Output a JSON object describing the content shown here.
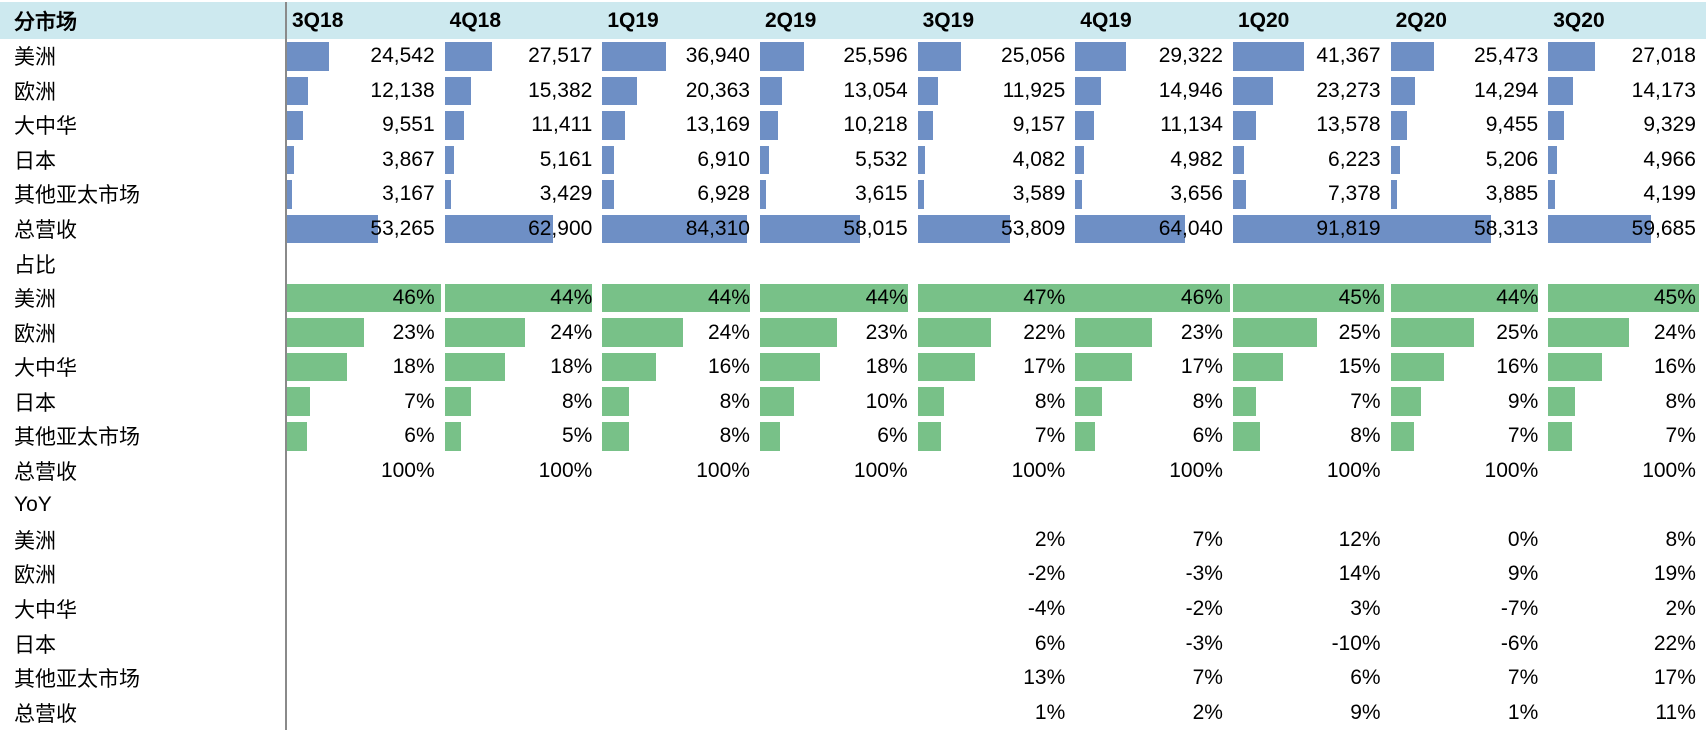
{
  "colors": {
    "header_bg": "#cde9ef",
    "revenue_bar": "#6e8fc5",
    "share_bar": "#78c188",
    "divider": "#8a8a8a",
    "text": "#000000"
  },
  "chart_data": {
    "type": "table",
    "title": "分市场",
    "categories": [
      "3Q18",
      "4Q18",
      "1Q19",
      "2Q19",
      "3Q19",
      "4Q19",
      "1Q20",
      "2Q20",
      "3Q20"
    ],
    "layout": {
      "bar_direction": "left-to-right",
      "value_alignment": "right",
      "notes": "each cell shows a data bar proportional to value/bar_max with the value right-aligned on top"
    },
    "sections": [
      {
        "id": "revenue",
        "heading": null,
        "bar_style": "blue",
        "bar_max": 91819,
        "rows": [
          {
            "label": "美洲",
            "values": [
              24542,
              27517,
              36940,
              25596,
              25056,
              29322,
              41367,
              25473,
              27018
            ],
            "texts": [
              "24,542",
              "27,517",
              "36,940",
              "25,596",
              "25,056",
              "29,322",
              "41,367",
              "25,473",
              "27,018"
            ]
          },
          {
            "label": "欧洲",
            "values": [
              12138,
              15382,
              20363,
              13054,
              11925,
              14946,
              23273,
              14294,
              14173
            ],
            "texts": [
              "12,138",
              "15,382",
              "20,363",
              "13,054",
              "11,925",
              "14,946",
              "23,273",
              "14,294",
              "14,173"
            ]
          },
          {
            "label": "大中华",
            "values": [
              9551,
              11411,
              13169,
              10218,
              9157,
              11134,
              13578,
              9455,
              9329
            ],
            "texts": [
              "9,551",
              "11,411",
              "13,169",
              "10,218",
              "9,157",
              "11,134",
              "13,578",
              "9,455",
              "9,329"
            ]
          },
          {
            "label": "日本",
            "values": [
              3867,
              5161,
              6910,
              5532,
              4082,
              4982,
              6223,
              5206,
              4966
            ],
            "texts": [
              "3,867",
              "5,161",
              "6,910",
              "5,532",
              "4,082",
              "4,982",
              "6,223",
              "5,206",
              "4,966"
            ]
          },
          {
            "label": "其他亚太市场",
            "values": [
              3167,
              3429,
              6928,
              3615,
              3589,
              3656,
              7378,
              3885,
              4199
            ],
            "texts": [
              "3,167",
              "3,429",
              "6,928",
              "3,615",
              "3,589",
              "3,656",
              "7,378",
              "3,885",
              "4,199"
            ]
          },
          {
            "label": "总营收",
            "values": [
              53265,
              62900,
              84310,
              58015,
              53809,
              64040,
              91819,
              58313,
              59685
            ],
            "texts": [
              "53,265",
              "62,900",
              "84,310",
              "58,015",
              "53,809",
              "64,040",
              "91,819",
              "58,313",
              "59,685"
            ]
          }
        ]
      },
      {
        "id": "share",
        "heading": "占比",
        "bar_style": "green",
        "bar_max": 47,
        "rows": [
          {
            "label": "美洲",
            "values": [
              46,
              44,
              44,
              44,
              47,
              46,
              45,
              44,
              45
            ],
            "texts": [
              "46%",
              "44%",
              "44%",
              "44%",
              "47%",
              "46%",
              "45%",
              "44%",
              "45%"
            ]
          },
          {
            "label": "欧洲",
            "values": [
              23,
              24,
              24,
              23,
              22,
              23,
              25,
              25,
              24
            ],
            "texts": [
              "23%",
              "24%",
              "24%",
              "23%",
              "22%",
              "23%",
              "25%",
              "25%",
              "24%"
            ]
          },
          {
            "label": "大中华",
            "values": [
              18,
              18,
              16,
              18,
              17,
              17,
              15,
              16,
              16
            ],
            "texts": [
              "18%",
              "18%",
              "16%",
              "18%",
              "17%",
              "17%",
              "15%",
              "16%",
              "16%"
            ]
          },
          {
            "label": "日本",
            "values": [
              7,
              8,
              8,
              10,
              8,
              8,
              7,
              9,
              8
            ],
            "texts": [
              "7%",
              "8%",
              "8%",
              "10%",
              "8%",
              "8%",
              "7%",
              "9%",
              "8%"
            ]
          },
          {
            "label": "其他亚太市场",
            "values": [
              6,
              5,
              8,
              6,
              7,
              6,
              8,
              7,
              7
            ],
            "texts": [
              "6%",
              "5%",
              "8%",
              "6%",
              "7%",
              "6%",
              "8%",
              "7%",
              "7%"
            ]
          },
          {
            "label": "总营收",
            "values": null,
            "texts": [
              "100%",
              "100%",
              "100%",
              "100%",
              "100%",
              "100%",
              "100%",
              "100%",
              "100%"
            ]
          }
        ]
      },
      {
        "id": "yoy",
        "heading": "YoY",
        "bar_style": null,
        "bar_max": null,
        "rows": [
          {
            "label": "美洲",
            "values": null,
            "texts": [
              "",
              "",
              "",
              "",
              "2%",
              "7%",
              "12%",
              "0%",
              "8%"
            ]
          },
          {
            "label": "欧洲",
            "values": null,
            "texts": [
              "",
              "",
              "",
              "",
              "-2%",
              "-3%",
              "14%",
              "9%",
              "19%"
            ]
          },
          {
            "label": "大中华",
            "values": null,
            "texts": [
              "",
              "",
              "",
              "",
              "-4%",
              "-2%",
              "3%",
              "-7%",
              "2%"
            ]
          },
          {
            "label": "日本",
            "values": null,
            "texts": [
              "",
              "",
              "",
              "",
              "6%",
              "-3%",
              "-10%",
              "-6%",
              "22%"
            ]
          },
          {
            "label": "其他亚太市场",
            "values": null,
            "texts": [
              "",
              "",
              "",
              "",
              "13%",
              "7%",
              "6%",
              "7%",
              "17%"
            ]
          },
          {
            "label": "总营收",
            "values": null,
            "texts": [
              "",
              "",
              "",
              "",
              "1%",
              "2%",
              "9%",
              "1%",
              "11%"
            ]
          }
        ]
      }
    ]
  }
}
